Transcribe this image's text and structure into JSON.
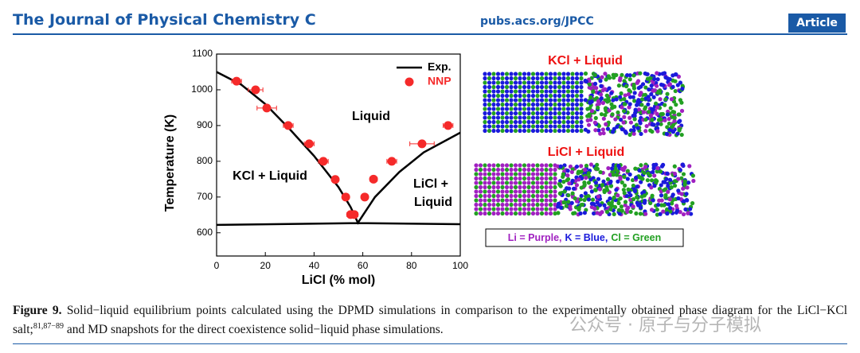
{
  "header": {
    "journal": "The Journal of Physical Chemistry C",
    "url": "pubs.acs.org/JPCC",
    "section": "Article"
  },
  "chart_data": {
    "type": "scatter",
    "x_label": "LiCl (% mol)",
    "y_label": "Temperature (K)",
    "xlim": [
      0,
      100
    ],
    "ylim": [
      535,
      1100
    ],
    "xticks": [
      0,
      20,
      40,
      60,
      80,
      100
    ],
    "yticks": [
      600,
      700,
      800,
      900,
      1000,
      1100
    ],
    "legend": "upper right",
    "annotations": [
      "Liquid",
      "KCl + Liquid",
      "LiCl +",
      "Liquid"
    ],
    "series": [
      {
        "name": "Exp.",
        "type": "line",
        "color": "#000000",
        "x": [
          0,
          10,
          20,
          30,
          40,
          50,
          55,
          58,
          65,
          75,
          85,
          100,
          null,
          0,
          58,
          100
        ],
        "values": [
          1050,
          1015,
          960,
          890,
          815,
          728,
          672,
          628,
          700,
          770,
          825,
          880,
          null,
          622,
          627,
          624
        ]
      },
      {
        "name": "NNP",
        "type": "scatter",
        "color": "#f52a2a",
        "x": [
          8.2,
          16,
          20.6,
          29.4,
          38,
          43.8,
          48.7,
          53,
          55,
          56.5,
          60.8,
          64.4,
          71.9,
          84.3,
          95
        ],
        "values": [
          1024,
          1000,
          949,
          900,
          849,
          800,
          749,
          700,
          651,
          651,
          700,
          750,
          800,
          849,
          900
        ],
        "xerr": [
          2,
          3,
          4,
          2,
          2,
          2,
          1,
          1,
          1.5,
          1.5,
          1,
          1.5,
          2,
          5,
          2
        ]
      }
    ]
  },
  "snapshots": {
    "panels": [
      "KCl + Liquid",
      "LiCl + Liquid"
    ],
    "legend": [
      "Li = Purple,",
      "K = Blue,",
      "Cl = Green"
    ],
    "legend_colors": [
      "#a020c0",
      "#1a1adb",
      "#22a022"
    ]
  },
  "caption": {
    "label": "Figure 9.",
    "text": "Solid−liquid equilibrium points calculated using the DPMD simulations in comparison to the experimentally obtained phase diagram for the LiCl−KCl salt;",
    "refs": "81,87−89",
    "text2": " and MD snapshots for the direct coexistence solid−liquid phase simulations.",
    "watermark": "公众号 · 原子与分子模拟"
  }
}
